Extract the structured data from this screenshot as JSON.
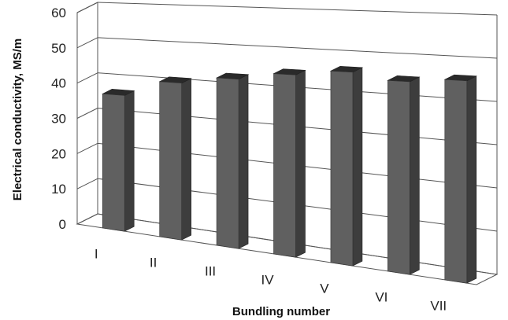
{
  "chart_data": {
    "type": "bar",
    "title": "",
    "xlabel": "Bundling number",
    "ylabel": "Electrical conductivity, MS/m",
    "categories": [
      "I",
      "II",
      "III",
      "IV",
      "V",
      "VI",
      "VII"
    ],
    "values": [
      37.5,
      42,
      44,
      46,
      47.5,
      46,
      47
    ],
    "ylim": [
      0,
      60
    ],
    "yticks": [
      0,
      10,
      20,
      30,
      40,
      50,
      60
    ],
    "grid": true,
    "style": "3d-column",
    "colors": {
      "bar_front": "#606060",
      "bar_side": "#3d3d3d",
      "bar_top": "#2a2a2a",
      "grid": "#555555"
    }
  }
}
